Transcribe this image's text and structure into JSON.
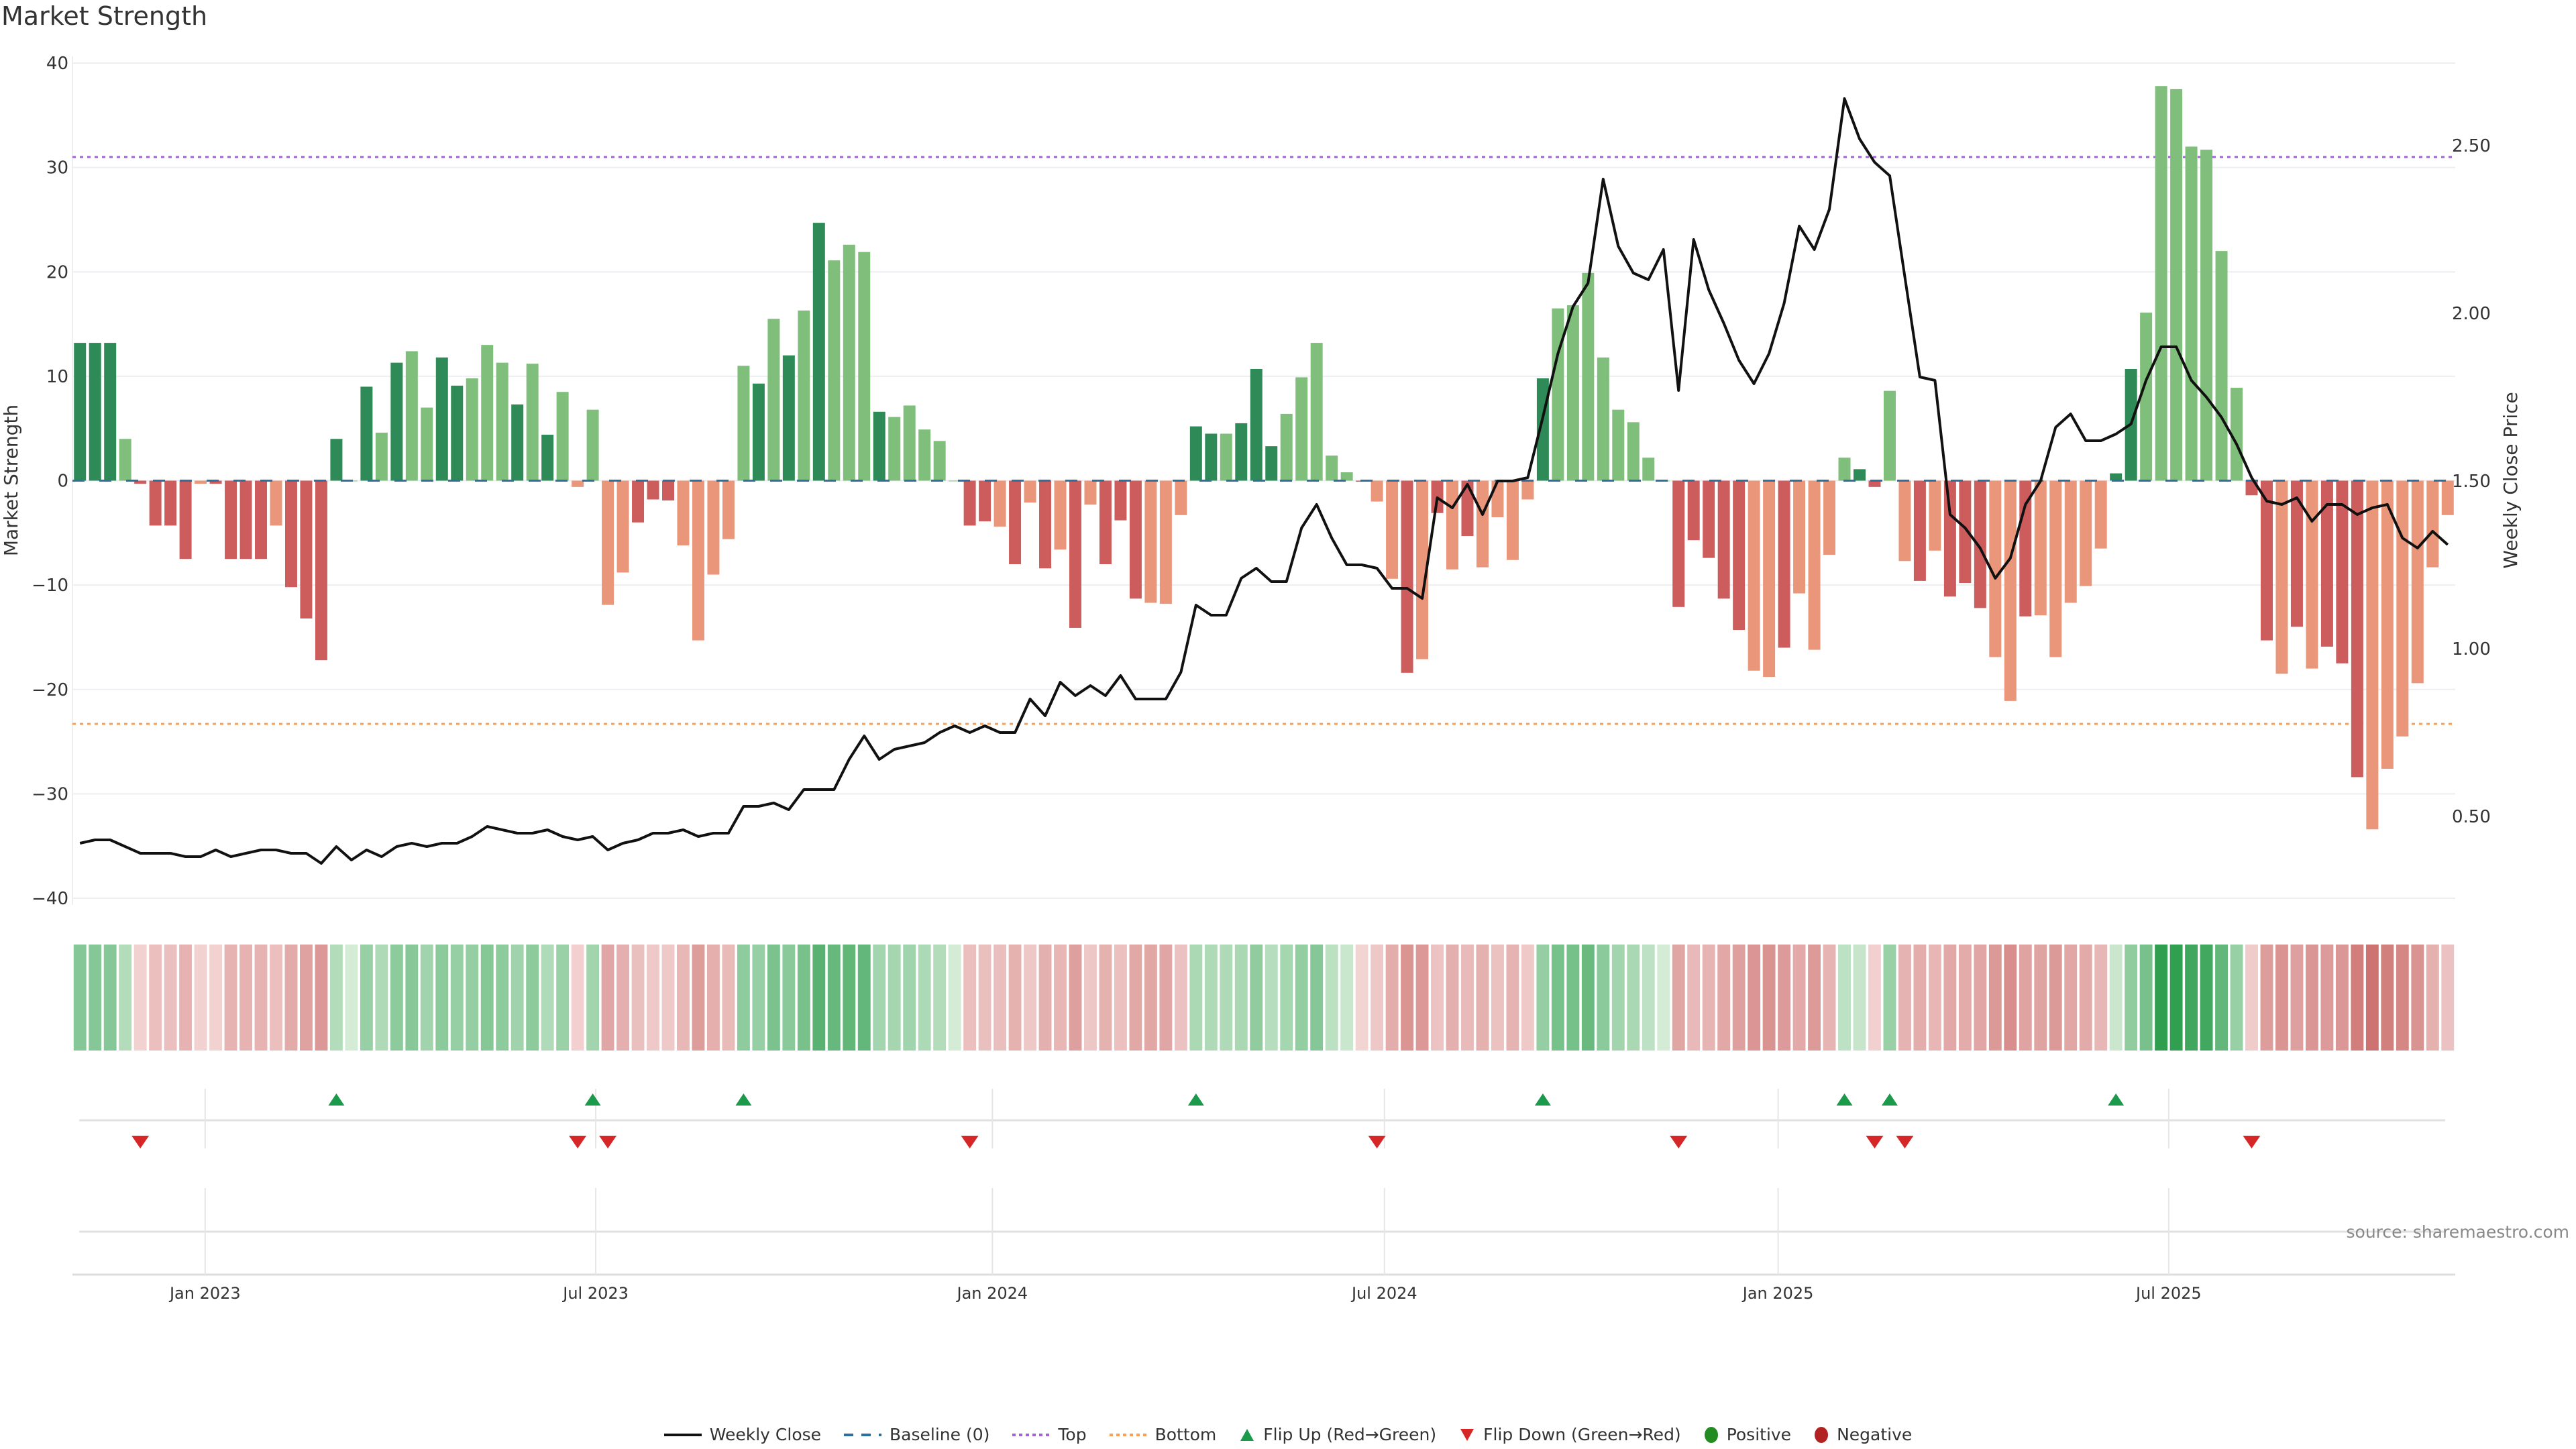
{
  "title": "Market Strength",
  "source": "source: sharemaestro.com",
  "legend": [
    {
      "label": "Weekly Close",
      "icon": "solid-line",
      "color": "#111111"
    },
    {
      "label": "Baseline (0)",
      "icon": "dashed-line",
      "color": "#2f6fa0"
    },
    {
      "label": "Top",
      "icon": "dotted-line",
      "color": "#a55fe0"
    },
    {
      "label": "Bottom",
      "icon": "dotted-line",
      "color": "#f0a060"
    },
    {
      "label": "Flip Up (Red→Green)",
      "icon": "triangle-up",
      "color": "#1a9a4a"
    },
    {
      "label": "Flip Down (Green→Red)",
      "icon": "triangle-down",
      "color": "#d62728"
    },
    {
      "label": "Positive",
      "icon": "circle",
      "color": "#228b22"
    },
    {
      "label": "Negative",
      "icon": "circle",
      "color": "#b22222"
    }
  ],
  "chart_data": {
    "type": "bar",
    "title": "Market Strength",
    "ylabel": "Market Strength",
    "y2label": "Weekly Close Price",
    "ylim": [
      -40,
      40
    ],
    "yticks": [
      "40",
      "30",
      "20",
      "10",
      "0",
      "−10",
      "−20",
      "−30",
      "−40"
    ],
    "ytick_values": [
      40,
      30,
      20,
      10,
      0,
      -10,
      -20,
      -30,
      -40
    ],
    "y2lim_at_ylim": [
      0.5,
      2.5
    ],
    "y2ticks": [
      "2.50",
      "2.00",
      "1.50",
      "1.00",
      "0.50"
    ],
    "y2tick_values": [
      2.5,
      2.0,
      1.5,
      1.0,
      0.5
    ],
    "baseline": 0,
    "top": 31,
    "bottom": -23.3,
    "xticks": [
      {
        "label": "Jan 2023",
        "week": 8.3
      },
      {
        "label": "Jul 2023",
        "week": 34.2
      },
      {
        "label": "Jan 2024",
        "week": 60.5
      },
      {
        "label": "Jul 2024",
        "week": 86.5
      },
      {
        "label": "Jan 2025",
        "week": 112.6
      },
      {
        "label": "Jul 2025",
        "week": 138.5
      }
    ],
    "strength": [
      13.2,
      13.2,
      13.2,
      4,
      -0.3,
      -4.3,
      -4.3,
      -7.5,
      -0.3,
      -0.3,
      -7.5,
      -7.5,
      -7.5,
      -4.3,
      -10.2,
      -13.2,
      -17.2,
      4,
      0,
      9,
      4.6,
      11.3,
      12.4,
      7,
      11.8,
      9.1,
      9.8,
      13,
      11.3,
      7.3,
      11.2,
      4.4,
      8.5,
      -0.6,
      6.8,
      -11.9,
      -8.8,
      -4,
      -1.8,
      -1.9,
      -6.2,
      -15.3,
      -9,
      -5.6,
      11,
      9.3,
      15.5,
      12,
      16.3,
      24.7,
      21.1,
      22.6,
      21.9,
      6.6,
      6.1,
      7.2,
      4.9,
      3.8,
      0,
      -4.3,
      -3.9,
      -4.4,
      -8,
      -2.1,
      -8.4,
      -6.6,
      -14.1,
      -2.3,
      -8,
      -3.8,
      -11.3,
      -11.7,
      -11.8,
      -3.3,
      5.2,
      4.5,
      4.5,
      5.5,
      10.7,
      3.3,
      6.4,
      9.9,
      13.2,
      2.4,
      0.8,
      -0.1,
      -2,
      -9.4,
      -18.4,
      -17.1,
      -3.1,
      -8.5,
      -5.3,
      -8.3,
      -3.5,
      -7.6,
      -1.8,
      9.8,
      16.5,
      16.8,
      19.9,
      11.8,
      6.8,
      5.6,
      2.2,
      0,
      -12.1,
      -5.7,
      -7.4,
      -11.3,
      -14.3,
      -18.2,
      -18.8,
      -16,
      -10.8,
      -16.2,
      -7.1,
      2.2,
      1.1,
      -0.6,
      8.6,
      -7.7,
      -9.6,
      -6.7,
      -11.1,
      -9.8,
      -12.2,
      -16.9,
      -21.1,
      -13,
      -12.9,
      -16.9,
      -11.7,
      -10.1,
      -6.5,
      0.7,
      10.7,
      16.1,
      37.8,
      37.5,
      32,
      31.7,
      22,
      8.9,
      -1.4,
      -15.3,
      -18.5,
      -14,
      -18,
      -15.9,
      -17.5,
      -28.4,
      -33.4,
      -27.6,
      -24.5,
      -19.4,
      -8.3,
      -3.3
    ],
    "shade": "dddlrrrrlrrrrlrrrdxdldllddllldldrdrllrrrllldldldldllldllxrlrrlrlrlrlrrrldlddldddllxrrrllrlrlrldddd llllxrlrrrrrllrldlrdrrlrlrrrllrlllddddllllllrrrlrlrrrllllll",
    "price": [
      0.42,
      0.43,
      0.43,
      0.41,
      0.39,
      0.39,
      0.39,
      0.38,
      0.38,
      0.4,
      0.38,
      0.39,
      0.4,
      0.4,
      0.39,
      0.39,
      0.36,
      0.41,
      0.37,
      0.4,
      0.38,
      0.41,
      0.42,
      0.41,
      0.42,
      0.42,
      0.44,
      0.47,
      0.46,
      0.45,
      0.45,
      0.46,
      0.44,
      0.43,
      0.44,
      0.4,
      0.42,
      0.43,
      0.45,
      0.45,
      0.46,
      0.44,
      0.45,
      0.45,
      0.53,
      0.53,
      0.54,
      0.52,
      0.58,
      0.58,
      0.58,
      0.67,
      0.74,
      0.67,
      0.7,
      0.71,
      0.72,
      0.75,
      0.77,
      0.75,
      0.77,
      0.75,
      0.75,
      0.85,
      0.8,
      0.9,
      0.86,
      0.89,
      0.86,
      0.92,
      0.85,
      0.85,
      0.85,
      0.93,
      1.13,
      1.1,
      1.1,
      1.21,
      1.24,
      1.2,
      1.2,
      1.36,
      1.43,
      1.33,
      1.25,
      1.25,
      1.24,
      1.18,
      1.18,
      1.15,
      1.45,
      1.42,
      1.49,
      1.4,
      1.5,
      1.5,
      1.51,
      1.69,
      1.88,
      2.02,
      2.09,
      2.4,
      2.2,
      2.12,
      2.1,
      2.19,
      1.77,
      2.22,
      2.07,
      1.97,
      1.86,
      1.79,
      1.88,
      2.03,
      2.26,
      2.19,
      2.31,
      2.64,
      2.52,
      2.45,
      2.41,
      2.11,
      1.81,
      1.8,
      1.4,
      1.36,
      1.3,
      1.21,
      1.27,
      1.43,
      1.5,
      1.66,
      1.7,
      1.62,
      1.62,
      1.64,
      1.67,
      1.8,
      1.9,
      1.9,
      1.8,
      1.75,
      1.69,
      1.61,
      1.51,
      1.44,
      1.43,
      1.45,
      1.38,
      1.43,
      1.43,
      1.4,
      1.42,
      1.43,
      1.33,
      1.3,
      1.35,
      1.31
    ],
    "flip_up_weeks": [
      17,
      34,
      44,
      74,
      97,
      117,
      120,
      135
    ],
    "flip_down_weeks": [
      4,
      33,
      35,
      59,
      86,
      106,
      119,
      121,
      144
    ]
  }
}
